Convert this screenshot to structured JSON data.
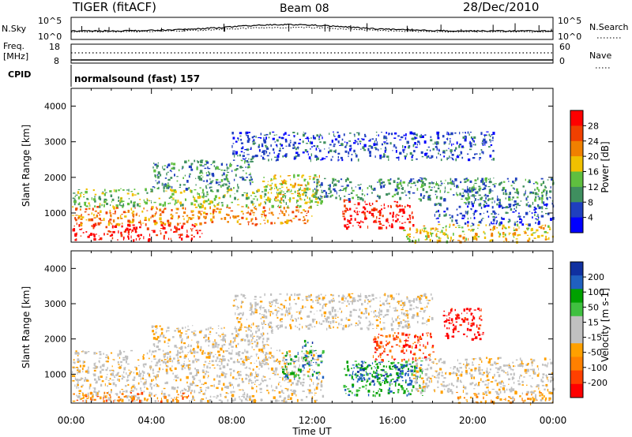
{
  "header": {
    "radar": "TIGER (fitACF)",
    "beam": "Beam 08",
    "date": "28/Dec/2010"
  },
  "sky_panel": {
    "left_label": "N.Sky",
    "left_ticks": [
      "10^5",
      "10^0"
    ],
    "right_label": "N.Search",
    "right_ticks": [
      "10^5",
      "10^0"
    ]
  },
  "freq_panel": {
    "left_label_1": "Freq.",
    "left_label_2": "[MHz]",
    "left_ticks": [
      "18",
      "8"
    ],
    "right_label": "Nave",
    "right_ticks": [
      "60",
      "0"
    ]
  },
  "cpid": {
    "label": "CPID",
    "value": "normalsound (fast) 157"
  },
  "colors": {
    "power_scale": [
      "#0000ff",
      "#1f3fbf",
      "#3f8f5f",
      "#5fbf3f",
      "#f0c000",
      "#f08000",
      "#f04000",
      "#ff0000"
    ],
    "velocity_scale": [
      "#ff0000",
      "#ff4000",
      "#ff8000",
      "#ffa000",
      "#c0c0c0",
      "#c0c0c0",
      "#40c040",
      "#00a000",
      "#2060c0",
      "#1030a0"
    ]
  },
  "chart_data": [
    {
      "type": "heatmap",
      "name": "power",
      "xlabel": "",
      "ylabel": "Slant Range [km]",
      "x_ticks": [
        "00:00",
        "04:00",
        "08:00",
        "12:00",
        "16:00",
        "20:00",
        "00:00"
      ],
      "y_ticks": [
        1000,
        2000,
        3000,
        4000
      ],
      "ylim": [
        180,
        4500
      ],
      "colorbar_label": "Power [dB]",
      "colorbar_ticks": [
        "28",
        "24",
        "20",
        "16",
        "12",
        "8",
        "4"
      ],
      "regions": [
        {
          "t0": 0.0,
          "t1": 6.5,
          "r0": 250,
          "r1": 700,
          "level": 7
        },
        {
          "t0": 0.0,
          "t1": 12.0,
          "r0": 700,
          "r1": 1200,
          "level": 5
        },
        {
          "t0": 0.0,
          "t1": 12.5,
          "r0": 1200,
          "r1": 1700,
          "level": 3
        },
        {
          "t0": 4.0,
          "t1": 9.0,
          "r0": 1700,
          "r1": 2500,
          "level": 2
        },
        {
          "t0": 9.5,
          "t1": 12.5,
          "r0": 1300,
          "r1": 2100,
          "level": 4
        },
        {
          "t0": 13.5,
          "t1": 17.0,
          "r0": 600,
          "r1": 1400,
          "level": 7
        },
        {
          "t0": 12.0,
          "t1": 21.0,
          "r0": 1400,
          "r1": 2000,
          "level": 2
        },
        {
          "t0": 16.5,
          "t1": 24.0,
          "r0": 200,
          "r1": 700,
          "level": 4
        },
        {
          "t0": 18.0,
          "t1": 24.0,
          "r0": 700,
          "r1": 1300,
          "level": 1
        },
        {
          "t0": 19.5,
          "t1": 24.0,
          "r0": 1300,
          "r1": 2000,
          "level": 2
        },
        {
          "t0": 8.0,
          "t1": 21.0,
          "r0": 2500,
          "r1": 3300,
          "level": 1
        }
      ]
    },
    {
      "type": "heatmap",
      "name": "velocity",
      "xlabel": "Time UT",
      "ylabel": "Slant Range [km]",
      "x_ticks": [
        "00:00",
        "04:00",
        "08:00",
        "12:00",
        "16:00",
        "20:00",
        "00:00"
      ],
      "y_ticks": [
        1000,
        2000,
        3000,
        4000
      ],
      "ylim": [
        180,
        4500
      ],
      "colorbar_label": "Velocity [m s-1]",
      "colorbar_ticks": [
        "200",
        "100",
        "50",
        "15",
        "-15",
        "-50",
        "-100",
        "-200"
      ],
      "regions": [
        {
          "t0": 0.0,
          "t1": 12.5,
          "r0": 250,
          "r1": 1700,
          "level": 4
        },
        {
          "t0": 0.0,
          "t1": 6.0,
          "r0": 250,
          "r1": 500,
          "level": 2
        },
        {
          "t0": 4.0,
          "t1": 10.0,
          "r0": 1700,
          "r1": 2400,
          "level": 4
        },
        {
          "t0": 10.5,
          "t1": 12.5,
          "r0": 900,
          "r1": 1700,
          "level": 7
        },
        {
          "t0": 11.5,
          "t1": 12.0,
          "r0": 1200,
          "r1": 2000,
          "level": 8
        },
        {
          "t0": 13.5,
          "t1": 17.5,
          "r0": 400,
          "r1": 1400,
          "level": 7
        },
        {
          "t0": 14.0,
          "t1": 17.0,
          "r0": 800,
          "r1": 1300,
          "level": 8
        },
        {
          "t0": 15.0,
          "t1": 18.0,
          "r0": 1400,
          "r1": 2200,
          "level": 1
        },
        {
          "t0": 18.5,
          "t1": 20.5,
          "r0": 2000,
          "r1": 2900,
          "level": 0
        },
        {
          "t0": 17.0,
          "t1": 24.0,
          "r0": 500,
          "r1": 1500,
          "level": 4
        },
        {
          "t0": 8.0,
          "t1": 18.0,
          "r0": 2300,
          "r1": 3300,
          "level": 4
        },
        {
          "t0": 19.0,
          "t1": 24.0,
          "r0": 200,
          "r1": 500,
          "level": 3
        }
      ]
    }
  ]
}
